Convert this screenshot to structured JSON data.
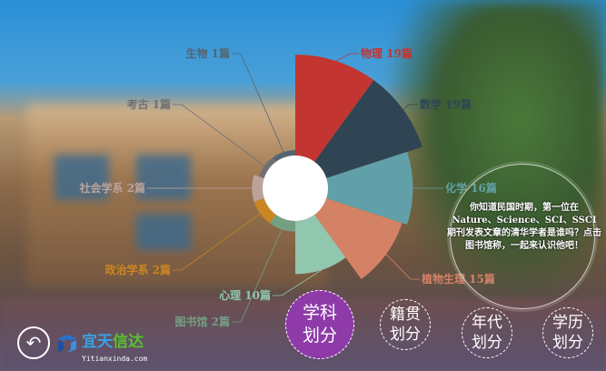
{
  "chart_data": {
    "type": "nightingale-rose",
    "unit": "篇",
    "categories": [
      "物理",
      "数学",
      "化学",
      "植物生理",
      "心理",
      "图书馆",
      "政治学系",
      "社会学系",
      "考古",
      "生物"
    ],
    "values": [
      19,
      19,
      16,
      15,
      10,
      2,
      2,
      2,
      1,
      1
    ],
    "labels": [
      "物理 19篇",
      "数学 19篇",
      "化学 16篇",
      "植物生理 15篇",
      "心理 10篇",
      "图书馆 2篇",
      "政治学系 2篇",
      "社会学系 2篇",
      "考古 1篇",
      "生物 1篇"
    ],
    "colors": [
      "#c23531",
      "#2f4554",
      "#61a0a8",
      "#d48265",
      "#91c7ae",
      "#749f83",
      "#ca8622",
      "#bda29a",
      "#6e7074",
      "#546570"
    ]
  },
  "nav": {
    "back_icon": "undo-arrow-icon",
    "buttons": [
      {
        "line1": "学科",
        "line2": "划分",
        "active": true
      },
      {
        "line1": "籍贯",
        "line2": "划分"
      },
      {
        "line1": "年代",
        "line2": "划分"
      },
      {
        "line1": "学历",
        "line2": "划分"
      }
    ],
    "active_color": "#8e3aa8"
  },
  "tip": {
    "text": "你知道民国时期，第一位在 Nature、Science、SCI、SSCI 期刊发表文章的清华学者是谁吗？点击图书馆称，一起来认识他吧！"
  },
  "watermark": {
    "name_blue": "宜天",
    "name_green": "信达",
    "url": "Yitianxinda.com"
  }
}
